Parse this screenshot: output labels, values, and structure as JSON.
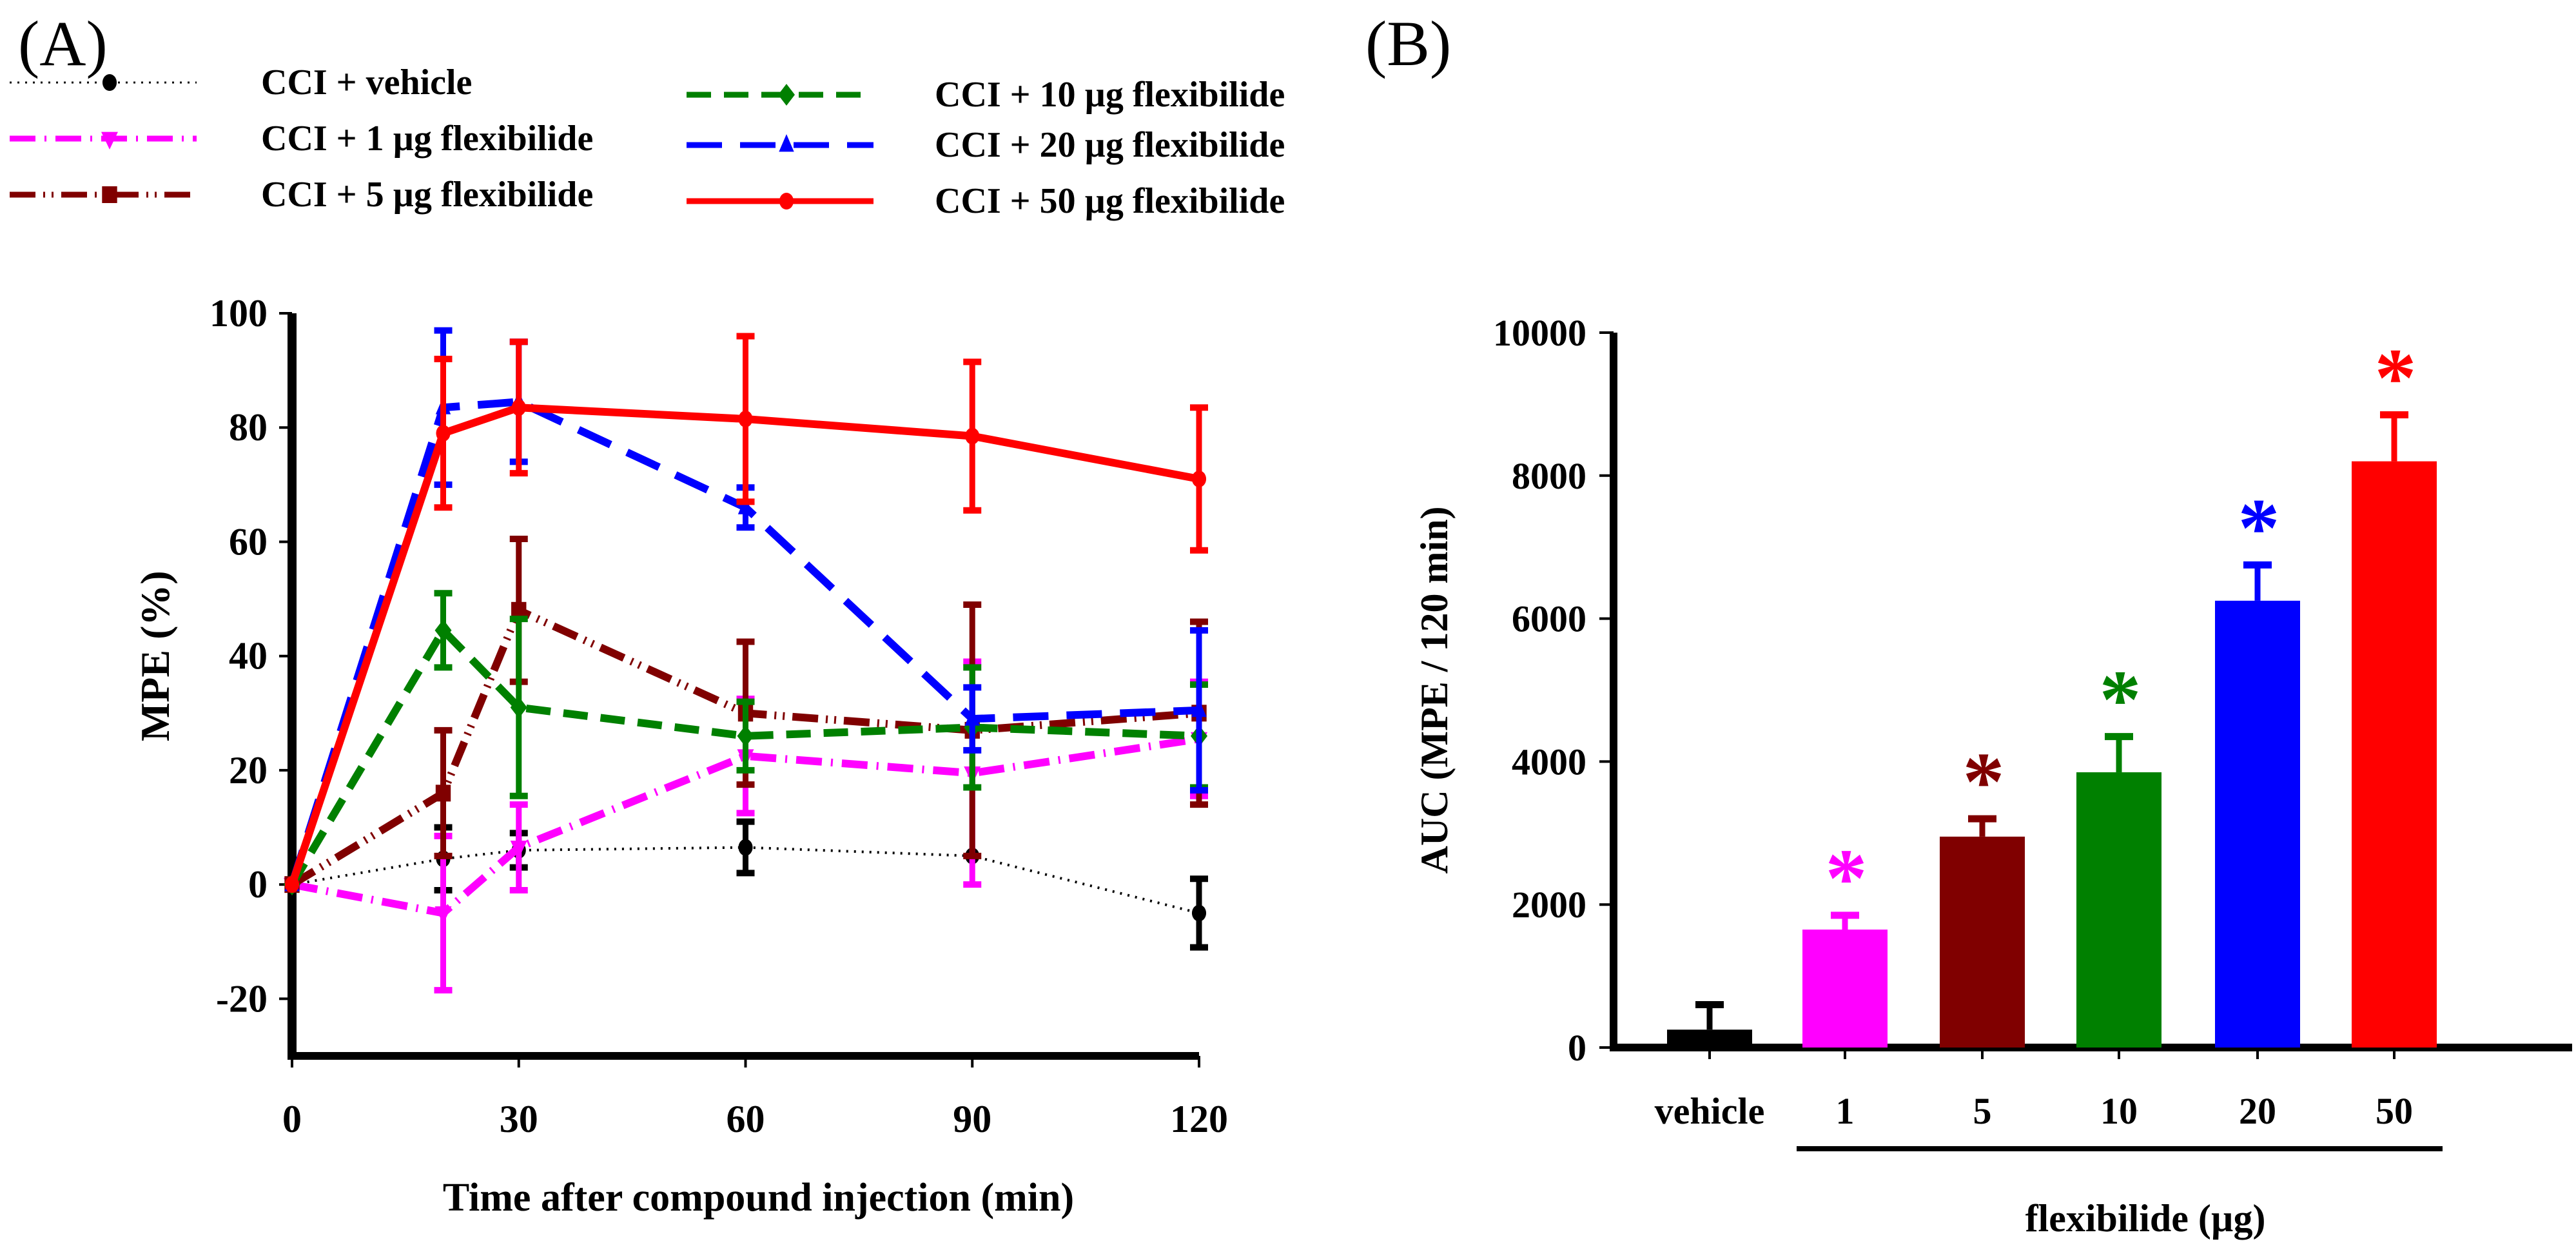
{
  "panels": {
    "a_label": "(A)",
    "b_label": "(B)"
  },
  "legend": [
    {
      "label": "CCI + vehicle",
      "color": "#000000",
      "marker": "circle",
      "dash": "dotted"
    },
    {
      "label": "CCI + 1 µg flexibilide",
      "color": "#ff00ff",
      "marker": "triangle-down",
      "dash": "dash-dot"
    },
    {
      "label": "CCI + 5 µg flexibilide",
      "color": "#800000",
      "marker": "square",
      "dash": "dash-dot-dot"
    },
    {
      "label": "CCI + 10 µg flexibilide",
      "color": "#008000",
      "marker": "diamond",
      "dash": "dashed"
    },
    {
      "label": "CCI + 20 µg flexibilide",
      "color": "#0000ff",
      "marker": "triangle-up",
      "dash": "long-dash"
    },
    {
      "label": "CCI + 50 µg flexibilide",
      "color": "#ff0000",
      "marker": "circle",
      "dash": "solid"
    }
  ],
  "chart_data": [
    {
      "type": "line",
      "panel": "A",
      "title": "",
      "xlabel": "Time after compound injection (min)",
      "ylabel": "MPE (%)",
      "x": [
        0,
        20,
        30,
        60,
        90,
        120
      ],
      "xticks": [
        0,
        30,
        60,
        90,
        120
      ],
      "xlim": [
        0,
        120
      ],
      "yticks": [
        -20,
        0,
        20,
        40,
        60,
        80,
        100
      ],
      "ylim": [
        -30,
        100
      ],
      "grid": false,
      "legend_position": "top",
      "series": [
        {
          "name": "CCI + vehicle",
          "color": "#000000",
          "marker": "circle",
          "dash": "dotted",
          "values": [
            0,
            4.5,
            6,
            6.5,
            5,
            -5
          ],
          "errors": [
            0,
            5.5,
            3,
            4.5,
            0,
            6
          ]
        },
        {
          "name": "CCI + 1 µg flexibilide",
          "color": "#ff00ff",
          "marker": "triangle-down",
          "dash": "dash-dot",
          "values": [
            0,
            -5,
            6.5,
            22.5,
            19.5,
            25.5
          ],
          "errors": [
            0,
            13.5,
            7.5,
            10,
            19.5,
            10
          ]
        },
        {
          "name": "CCI + 5 µg flexibilide",
          "color": "#800000",
          "marker": "square",
          "dash": "dash-dot-dot",
          "values": [
            0,
            16,
            48,
            30,
            27,
            30
          ],
          "errors": [
            0,
            11,
            12.5,
            12.5,
            22,
            16
          ]
        },
        {
          "name": "CCI + 10 µg flexibilide",
          "color": "#008000",
          "marker": "diamond",
          "dash": "dashed",
          "values": [
            0,
            44.5,
            31,
            26,
            27.5,
            26
          ],
          "errors": [
            0,
            6.5,
            15.5,
            6,
            10.5,
            9
          ]
        },
        {
          "name": "CCI + 20 µg flexibilide",
          "color": "#0000ff",
          "marker": "triangle-up",
          "dash": "long-dash",
          "values": [
            0,
            83.5,
            84.5,
            66,
            29,
            30.5
          ],
          "errors": [
            0,
            13.5,
            10.5,
            3.5,
            5.5,
            14
          ]
        },
        {
          "name": "CCI + 50 µg flexibilide",
          "color": "#ff0000",
          "marker": "circle",
          "dash": "solid",
          "values": [
            0,
            79,
            83.5,
            81.5,
            78.5,
            71
          ],
          "errors": [
            0,
            13,
            11.5,
            14.5,
            13,
            12.5
          ]
        }
      ]
    },
    {
      "type": "bar",
      "panel": "B",
      "title": "",
      "xlabel": "flexibilide (µg)",
      "ylabel": "AUC (MPE / 120 min)",
      "categories": [
        "vehicle",
        "1",
        "5",
        "10",
        "20",
        "50"
      ],
      "values": [
        250,
        1650,
        2950,
        3850,
        6250,
        8200
      ],
      "errors": [
        350,
        200,
        250,
        500,
        500,
        650
      ],
      "colors": [
        "#000000",
        "#ff00ff",
        "#800000",
        "#008000",
        "#0000ff",
        "#ff0000"
      ],
      "significance": [
        "",
        "*",
        "*",
        "*",
        "*",
        "*"
      ],
      "yticks": [
        0,
        2000,
        4000,
        6000,
        8000,
        10000
      ],
      "ylim": [
        0,
        10000
      ],
      "grid": false,
      "bracket_label": "flexibilide (µg)",
      "bracket_span": [
        "1",
        "50"
      ]
    }
  ]
}
